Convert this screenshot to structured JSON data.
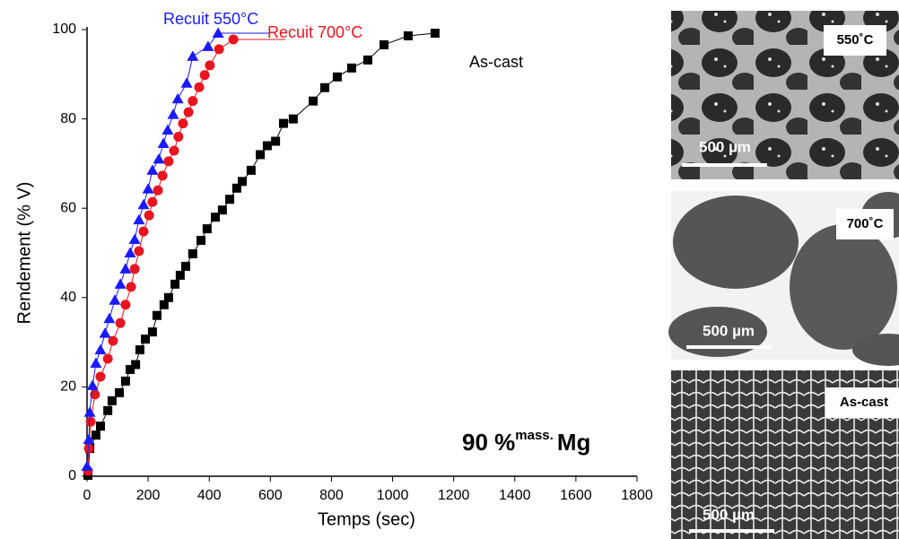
{
  "chart_data": {
    "type": "line",
    "xlabel": "Temps (sec)",
    "ylabel": "Rendement (% V)",
    "xlim": [
      0,
      1800
    ],
    "xticks": [
      0,
      200,
      400,
      600,
      800,
      1000,
      1200,
      1400,
      1600,
      1800
    ],
    "ylim": [
      0,
      100
    ],
    "yticks": [
      0,
      20,
      40,
      60,
      80,
      100
    ],
    "annotation": {
      "text": "90 %",
      "superscript": "mass.",
      "suffix": "Mg"
    },
    "series": [
      {
        "name": "As-cast",
        "color": "#000000",
        "marker": "square",
        "x": [
          3,
          9,
          29,
          44,
          68,
          82,
          106,
          126,
          141,
          159,
          173,
          191,
          214,
          229,
          252,
          267,
          288,
          305,
          323,
          346,
          373,
          393,
          420,
          443,
          467,
          490,
          508,
          537,
          567,
          590,
          617,
          643,
          675,
          740,
          778,
          819,
          866,
          919,
          972,
          1051,
          1139
        ],
        "values": [
          0.2,
          6.2,
          9.2,
          11.2,
          14.7,
          16.9,
          18.7,
          21.3,
          23.9,
          25,
          28.3,
          30.7,
          32.3,
          36,
          38.4,
          40,
          43,
          45,
          47,
          49.8,
          52.8,
          55.4,
          58,
          59.6,
          62,
          64.5,
          66,
          68.5,
          72,
          74,
          75,
          79,
          80,
          84,
          87,
          89.4,
          91.4,
          93.2,
          96.6,
          98.6,
          99.2
        ]
      },
      {
        "name": "Recuit 700°C",
        "color": "#e8141e",
        "marker": "circle",
        "x": [
          3,
          6,
          12,
          26,
          44,
          68,
          85,
          109,
          126,
          144,
          156,
          170,
          185,
          203,
          214,
          232,
          247,
          267,
          285,
          299,
          314,
          332,
          346,
          367,
          385,
          402,
          432,
          479
        ],
        "values": [
          1.2,
          6.2,
          12.2,
          18.3,
          22.3,
          26.3,
          30.3,
          34.3,
          38.4,
          42.4,
          46.4,
          50.4,
          54.8,
          58.4,
          61.4,
          64,
          67.3,
          70.5,
          72.9,
          76,
          79,
          81.5,
          84,
          87.1,
          89.8,
          92,
          95.6,
          97.8
        ]
      },
      {
        "name": "Recuit 550°C",
        "color": "#1a1aff",
        "marker": "triangle",
        "x": [
          0,
          6,
          9,
          18,
          29,
          44,
          59,
          73,
          91,
          109,
          126,
          141,
          156,
          170,
          185,
          200,
          214,
          235,
          250,
          264,
          282,
          297,
          326,
          346,
          396,
          429
        ],
        "values": [
          2.2,
          8.2,
          14.3,
          20.3,
          25.3,
          28.3,
          32,
          35.3,
          39.4,
          43,
          46.4,
          50,
          53,
          57.4,
          60.8,
          64.3,
          68.5,
          71,
          74.5,
          77.5,
          81,
          84.5,
          88,
          94,
          96.2,
          99.2
        ]
      }
    ]
  },
  "micrographs": [
    {
      "label": "550˚C",
      "scale": "500 µm"
    },
    {
      "label": "700˚C",
      "scale": "500 µm"
    },
    {
      "label": "As-cast",
      "scale": "500 µm"
    }
  ]
}
